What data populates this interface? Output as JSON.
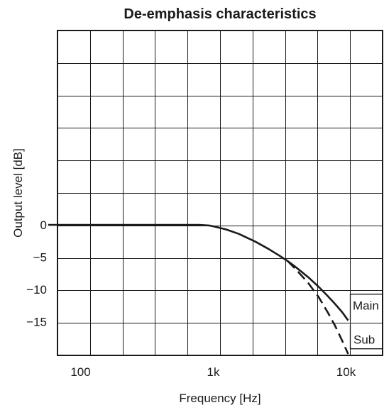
{
  "chart_data": {
    "type": "line",
    "title": "De-emphasis characteristics",
    "xlabel": "Frequency [Hz]",
    "ylabel": "Output level [dB]",
    "x_scale": "log",
    "xlim": [
      55,
      16000
    ],
    "ylim": [
      -20,
      30
    ],
    "grid": true,
    "x_ticks": [
      {
        "value": 100,
        "label": "100"
      },
      {
        "value": 1000,
        "label": "1k"
      },
      {
        "value": 10000,
        "label": "10k"
      }
    ],
    "y_ticks": [
      {
        "value": 0,
        "label": "0"
      },
      {
        "value": -5,
        "label": "−5"
      },
      {
        "value": -10,
        "label": "−10"
      },
      {
        "value": -15,
        "label": "−15"
      }
    ],
    "series": [
      {
        "name": "Main",
        "style": "solid",
        "color": "#1a1a1a",
        "points": [
          [
            55,
            0
          ],
          [
            500,
            0
          ],
          [
            750,
            0
          ],
          [
            900,
            -0.1
          ],
          [
            1000,
            -0.3
          ],
          [
            1200,
            -0.7
          ],
          [
            1500,
            -1.4
          ],
          [
            2000,
            -2.6
          ],
          [
            2500,
            -3.7
          ],
          [
            3000,
            -4.7
          ],
          [
            3500,
            -5.6
          ],
          [
            4000,
            -6.5
          ],
          [
            5000,
            -8.1
          ],
          [
            6000,
            -9.6
          ],
          [
            7000,
            -11.0
          ],
          [
            8000,
            -12.3
          ],
          [
            9000,
            -13.5
          ],
          [
            10000,
            -14.8
          ]
        ]
      },
      {
        "name": "Sub",
        "style": "dashed",
        "color": "#1a1a1a",
        "points": [
          [
            3500,
            -5.6
          ],
          [
            4000,
            -6.8
          ],
          [
            5000,
            -9.0
          ],
          [
            6000,
            -11.2
          ],
          [
            7000,
            -13.5
          ],
          [
            8000,
            -15.7
          ],
          [
            9000,
            -17.9
          ],
          [
            10000,
            -20.0
          ]
        ]
      }
    ]
  }
}
